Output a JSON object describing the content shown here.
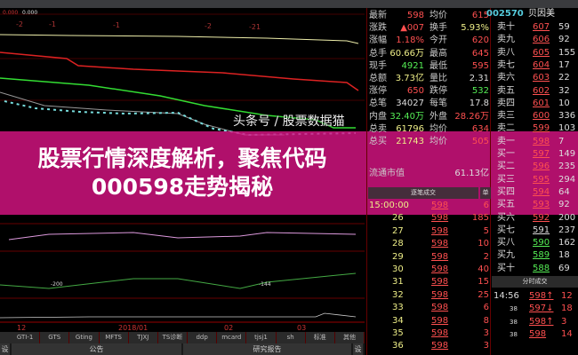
{
  "stock": {
    "code": "002570",
    "name": "贝因美"
  },
  "chart": {
    "top_readout_1": "0.000",
    "top_readout_2": "0.000",
    "peak_labels": [
      "-2",
      "-1",
      "-1",
      "-2",
      "-21"
    ],
    "indicator_values": [
      "-200",
      "-144"
    ],
    "date_labels": [
      "12",
      "2018/01",
      "02",
      "03"
    ]
  },
  "indicator_tabs": [
    "GTI-1",
    "GTS",
    "Gting",
    "MFTS",
    "TJXJ",
    "TS诊断",
    "ddp",
    "mcard",
    "tjsj1",
    "sh",
    "标准",
    "其他"
  ],
  "bottom_tabs": {
    "left_set": "设",
    "announcement": "公告",
    "research": "研究报告",
    "right_set": "设"
  },
  "quote": [
    {
      "l1": "最新",
      "v1": "598",
      "c1": "red",
      "l2": "均价",
      "v2": "615",
      "c2": "red"
    },
    {
      "l1": "涨跌",
      "v1": "▲007",
      "c1": "red",
      "l2": "换手",
      "v2": "5.93%",
      "c2": "yellow"
    },
    {
      "l1": "涨幅",
      "v1": "1.18%",
      "c1": "red",
      "l2": "今开",
      "v2": "620",
      "c2": "red"
    },
    {
      "l1": "总手",
      "v1": "60.66万",
      "c1": "yellow",
      "l2": "最高",
      "v2": "645",
      "c2": "red"
    },
    {
      "l1": "现手",
      "v1": "4921",
      "c1": "green",
      "l2": "最低",
      "v2": "595",
      "c2": "red"
    },
    {
      "l1": "总额",
      "v1": "3.73亿",
      "c1": "yellow",
      "l2": "量比",
      "v2": "2.31",
      "c2": "white"
    },
    {
      "l1": "涨停",
      "v1": "650",
      "c1": "red",
      "l2": "跌停",
      "v2": "532",
      "c2": "green"
    },
    {
      "l1": "总笔",
      "v1": "34027",
      "c1": "white",
      "l2": "每笔",
      "v2": "17.8",
      "c2": "white"
    },
    {
      "l1": "内盘",
      "v1": "32.40万",
      "c1": "green",
      "l2": "外盘",
      "v2": "28.26万",
      "c2": "red"
    },
    {
      "l1": "总卖",
      "v1": "61796",
      "c1": "yellow",
      "l2": "均价",
      "v2": "634",
      "c2": "red"
    },
    {
      "l1": "总买",
      "v1": "21743",
      "c1": "yellow",
      "l2": "均价",
      "v2": "505",
      "c2": "red"
    }
  ],
  "float_cap": {
    "label": "流通市值",
    "value": "61.13亿"
  },
  "ticks_header": {
    "title": "逐笔成交",
    "unit": "单"
  },
  "ticks": [
    {
      "t": "15:00:00",
      "p": "598",
      "v": "6"
    },
    {
      "t": "26",
      "p": "598",
      "v": "185"
    },
    {
      "t": "27",
      "p": "598",
      "v": "5"
    },
    {
      "t": "28",
      "p": "598",
      "v": "10"
    },
    {
      "t": "29",
      "p": "598",
      "v": "2"
    },
    {
      "t": "30",
      "p": "598",
      "v": "40"
    },
    {
      "t": "31",
      "p": "598",
      "v": "15"
    },
    {
      "t": "32",
      "p": "598",
      "v": "25"
    },
    {
      "t": "33",
      "p": "598",
      "v": "6"
    },
    {
      "t": "34",
      "p": "598",
      "v": "8"
    },
    {
      "t": "35",
      "p": "598",
      "v": "3"
    },
    {
      "t": "36",
      "p": "598",
      "v": "3"
    }
  ],
  "book": [
    {
      "l": "卖十",
      "p": "607",
      "v": "59",
      "c": "red"
    },
    {
      "l": "卖九",
      "p": "606",
      "v": "92",
      "c": "red"
    },
    {
      "l": "卖八",
      "p": "605",
      "v": "155",
      "c": "red"
    },
    {
      "l": "卖七",
      "p": "604",
      "v": "17",
      "c": "red"
    },
    {
      "l": "卖六",
      "p": "603",
      "v": "22",
      "c": "red"
    },
    {
      "l": "卖五",
      "p": "602",
      "v": "32",
      "c": "red"
    },
    {
      "l": "卖四",
      "p": "601",
      "v": "10",
      "c": "red"
    },
    {
      "l": "卖三",
      "p": "600",
      "v": "336",
      "c": "red"
    },
    {
      "l": "卖二",
      "p": "599",
      "v": "103",
      "c": "red"
    },
    {
      "l": "卖一",
      "p": "598",
      "v": "7",
      "c": "red"
    },
    {
      "l": "买一",
      "p": "597",
      "v": "149",
      "c": "red"
    },
    {
      "l": "买二",
      "p": "596",
      "v": "235",
      "c": "red"
    },
    {
      "l": "买三",
      "p": "595",
      "v": "294",
      "c": "red"
    },
    {
      "l": "买四",
      "p": "594",
      "v": "64",
      "c": "red"
    },
    {
      "l": "买五",
      "p": "593",
      "v": "92",
      "c": "red"
    },
    {
      "l": "买六",
      "p": "592",
      "v": "200",
      "c": "red"
    },
    {
      "l": "买七",
      "p": "591",
      "v": "237",
      "c": "white"
    },
    {
      "l": "买八",
      "p": "590",
      "v": "162",
      "c": "green"
    },
    {
      "l": "买九",
      "p": "589",
      "v": "18",
      "c": "green"
    },
    {
      "l": "买十",
      "p": "588",
      "v": "69",
      "c": "green"
    }
  ],
  "minute_header": "分时成交",
  "minute": [
    {
      "t": "14:56",
      "p": "598↑",
      "v": "12",
      "c": "red"
    },
    {
      "t": "38",
      "p": "597↓",
      "v": "18",
      "c": "red"
    },
    {
      "t": "38",
      "p": "598↑",
      "v": "3",
      "c": "red"
    },
    {
      "t": "38",
      "p": "598",
      "v": "14",
      "c": "red"
    }
  ],
  "overlay_title": "股票行情深度解析，聚焦代码000598走势揭秘",
  "watermark": "头条号 / 股票数据猫",
  "colors": {
    "overlay": "#d71482",
    "up": "#ff5050",
    "down": "#55ee55"
  }
}
